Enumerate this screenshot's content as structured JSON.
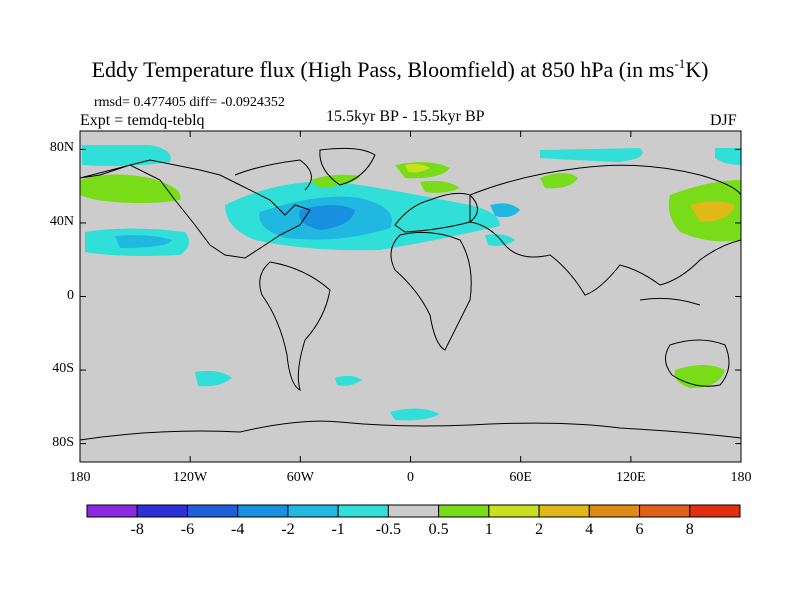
{
  "title": {
    "main": "Eddy Temperature flux (High Pass, Bloomfield) at 850 hPa (in ms",
    "superscript": "-1",
    "suffix": "K)"
  },
  "stats": "rmsd= 0.477405 diff= -0.0924352",
  "experiment": "Expt = temdq-teblq",
  "period": "15.5kyr BP - 15.5kyr BP",
  "season": "DJF",
  "axes": {
    "y_ticks": [
      {
        "label": "80N",
        "lat": 80
      },
      {
        "label": "40N",
        "lat": 40
      },
      {
        "label": "0",
        "lat": 0
      },
      {
        "label": "40S",
        "lat": -40
      },
      {
        "label": "80S",
        "lat": -80
      }
    ],
    "x_ticks": [
      {
        "label": "180",
        "lon": -180
      },
      {
        "label": "120W",
        "lon": -120
      },
      {
        "label": "60W",
        "lon": -60
      },
      {
        "label": "0",
        "lon": 0
      },
      {
        "label": "60E",
        "lon": 60
      },
      {
        "label": "120E",
        "lon": 120
      },
      {
        "label": "180",
        "lon": 180
      }
    ]
  },
  "colorbar": {
    "labels": [
      "-8",
      "-6",
      "-4",
      "-2",
      "-1",
      "-0.5",
      "0.5",
      "1",
      "2",
      "4",
      "6",
      "8"
    ],
    "colors": [
      "#8a2be2",
      "#3030d8",
      "#1e5fdc",
      "#1890e0",
      "#20b8e0",
      "#30e0d8",
      "#cccccc",
      "#78dc18",
      "#c8e020",
      "#e0b818",
      "#e08a18",
      "#e06018",
      "#e03010"
    ]
  },
  "background_color": "#cccccc"
}
